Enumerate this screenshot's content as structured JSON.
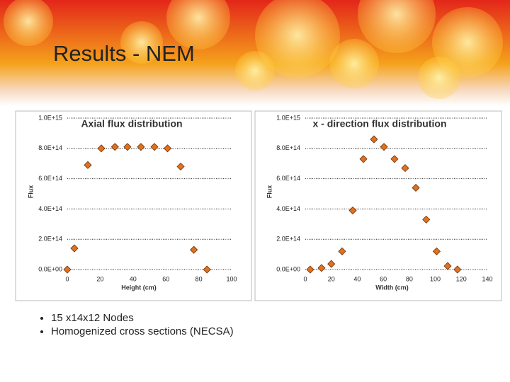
{
  "title": "Results - NEM",
  "bullets": [
    "15 x14x12 Nodes",
    "Homogenized cross sections (NECSA)"
  ],
  "chart_data": [
    {
      "type": "scatter",
      "title": "Axial flux distribution",
      "x_label": "Height (cm)",
      "y_label": "Flux",
      "x": [
        0,
        4.3,
        12.5,
        20.7,
        29,
        36.6,
        44.8,
        53,
        61,
        69,
        77,
        85
      ],
      "values": [
        0,
        140000000000000.0,
        690000000000000.0,
        800000000000000.0,
        810000000000000.0,
        810000000000000.0,
        810000000000000.0,
        810000000000000.0,
        800000000000000.0,
        680000000000000.0,
        130000000000000.0,
        0
      ],
      "color": "#e2711d",
      "marker": "diamond",
      "grid": true,
      "xlim": [
        0,
        100
      ],
      "xticks": [
        0,
        20,
        40,
        60,
        80,
        100
      ],
      "ylim": [
        0,
        1000000000000000.0
      ],
      "yticks": [
        {
          "value": 0,
          "label": "0.0E+00"
        },
        {
          "value": 200000000000000.0,
          "label": "2.0E+14"
        },
        {
          "value": 400000000000000.0,
          "label": "4.0E+14"
        },
        {
          "value": 600000000000000.0,
          "label": "6.0E+14"
        },
        {
          "value": 800000000000000.0,
          "label": "8.0E+14"
        },
        {
          "value": 1000000000000000.0,
          "label": "1.0E+15"
        }
      ]
    },
    {
      "type": "scatter",
      "title": "x - direction flux distribution",
      "x_label": "Width (cm)",
      "y_label": "Flux",
      "x": [
        3.8,
        12.5,
        20,
        28.3,
        36.5,
        44.7,
        52.8,
        60.5,
        68.6,
        76.8,
        85,
        93,
        101,
        109.5,
        117
      ],
      "values": [
        0,
        10000000000000.0,
        37000000000000.0,
        120000000000000.0,
        390000000000000.0,
        730000000000000.0,
        860000000000000.0,
        810000000000000.0,
        730000000000000.0,
        670000000000000.0,
        540000000000000.0,
        330000000000000.0,
        120000000000000.0,
        23000000000000.0,
        0
      ],
      "color": "#e2711d",
      "marker": "diamond",
      "grid": true,
      "xlim": [
        0,
        140
      ],
      "xticks": [
        0,
        20,
        40,
        60,
        80,
        100,
        120,
        140
      ],
      "ylim": [
        0,
        1000000000000000.0
      ],
      "yticks": [
        {
          "value": 0,
          "label": "0.0E+00"
        },
        {
          "value": 200000000000000.0,
          "label": "2.0E+14"
        },
        {
          "value": 400000000000000.0,
          "label": "4.0E+14"
        },
        {
          "value": 600000000000000.0,
          "label": "6.0E+14"
        },
        {
          "value": 800000000000000.0,
          "label": "8.0E+14"
        },
        {
          "value": 1000000000000000.0,
          "label": "1.0E+15"
        }
      ]
    }
  ]
}
